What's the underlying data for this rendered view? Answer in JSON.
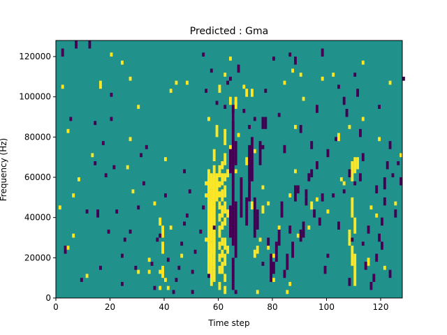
{
  "colors": {
    "background_value": "#21918c",
    "low_value": "#440154",
    "high_value": "#fde725",
    "axis": "#000000"
  },
  "chart_data": {
    "type": "heatmap",
    "title": "Predicted : Gma",
    "xlabel": "Time step",
    "ylabel": "Frequency (Hz)",
    "xlim": [
      0,
      128
    ],
    "ylim": [
      0,
      128000
    ],
    "xticks": [
      0,
      20,
      40,
      60,
      80,
      100,
      120
    ],
    "xtick_labels": [
      "0",
      "20",
      "40",
      "60",
      "80",
      "100",
      "120"
    ],
    "yticks": [
      0,
      20000,
      40000,
      60000,
      80000,
      100000,
      120000
    ],
    "ytick_labels": [
      "0",
      "20000",
      "40000",
      "60000",
      "80000",
      "100000",
      "120000"
    ],
    "n_time_steps": 128,
    "n_freq_bins": 128,
    "bin_hz": 1000,
    "value_range": [
      -1,
      1
    ],
    "background_value": 0,
    "colormap": "viridis",
    "grid": false,
    "cells_high": [
      [
        57,
        56,
        60
      ],
      [
        57,
        54,
        62
      ],
      [
        56,
        52,
        64
      ],
      [
        58,
        50,
        66
      ],
      [
        59,
        48,
        62
      ],
      [
        58,
        46,
        60
      ],
      [
        56,
        44,
        58
      ],
      [
        58,
        42,
        56
      ],
      [
        57,
        40,
        54
      ],
      [
        58,
        38,
        52
      ],
      [
        56,
        36,
        50
      ],
      [
        57,
        34,
        48
      ],
      [
        58,
        32,
        46
      ],
      [
        56,
        30,
        44
      ],
      [
        57,
        28,
        42
      ],
      [
        58,
        26,
        40
      ],
      [
        56,
        24,
        36
      ],
      [
        58,
        22,
        32
      ],
      [
        56,
        18,
        30
      ],
      [
        57,
        16,
        28
      ],
      [
        58,
        14,
        26
      ],
      [
        56,
        12,
        22
      ],
      [
        57,
        10,
        20
      ],
      [
        58,
        8,
        14
      ],
      [
        57,
        6,
        12
      ],
      [
        60,
        60,
        66
      ],
      [
        60,
        55,
        58
      ],
      [
        60,
        50,
        53
      ],
      [
        60,
        44,
        48
      ],
      [
        60,
        38,
        42
      ],
      [
        60,
        30,
        36
      ],
      [
        60,
        24,
        28
      ],
      [
        60,
        18,
        22
      ],
      [
        60,
        12,
        16
      ],
      [
        60,
        4,
        8
      ],
      [
        61,
        64,
        68
      ],
      [
        61,
        56,
        62
      ],
      [
        61,
        48,
        54
      ],
      [
        61,
        40,
        46
      ],
      [
        61,
        34,
        38
      ],
      [
        61,
        26,
        30
      ],
      [
        61,
        20,
        24
      ],
      [
        61,
        12,
        18
      ],
      [
        62,
        76,
        84
      ],
      [
        62,
        66,
        72
      ],
      [
        62,
        58,
        62
      ],
      [
        62,
        50,
        56
      ],
      [
        62,
        42,
        48
      ],
      [
        62,
        36,
        40
      ],
      [
        62,
        24,
        30
      ],
      [
        62,
        16,
        22
      ],
      [
        62,
        8,
        12
      ],
      [
        62,
        2,
        6
      ],
      [
        63,
        60,
        64
      ],
      [
        63,
        40,
        44
      ],
      [
        63,
        22,
        26
      ],
      [
        55,
        56,
        58
      ],
      [
        55,
        50,
        52
      ],
      [
        55,
        28,
        30
      ],
      [
        59,
        80,
        86
      ],
      [
        58,
        68,
        74
      ],
      [
        64,
        96,
        100
      ],
      [
        66,
        96,
        100
      ],
      [
        64,
        74,
        76
      ],
      [
        66,
        62,
        64
      ],
      [
        38,
        36,
        40
      ],
      [
        39,
        30,
        36
      ],
      [
        39,
        22,
        28
      ],
      [
        39,
        10,
        16
      ],
      [
        38,
        12,
        14
      ],
      [
        38,
        4,
        6
      ],
      [
        40,
        8,
        10
      ],
      [
        34,
        18,
        20
      ],
      [
        30,
        12,
        14
      ],
      [
        34,
        12,
        14
      ],
      [
        36,
        46,
        48
      ],
      [
        28,
        52,
        54
      ],
      [
        26,
        64,
        66
      ],
      [
        13,
        70,
        72
      ],
      [
        8,
        58,
        60
      ],
      [
        6,
        50,
        52
      ],
      [
        4,
        24,
        26
      ],
      [
        6,
        30,
        32
      ],
      [
        2,
        104,
        106
      ],
      [
        4,
        82,
        84
      ],
      [
        20,
        120,
        122
      ],
      [
        24,
        116,
        118
      ],
      [
        27,
        108,
        110
      ],
      [
        30,
        94,
        96
      ],
      [
        42,
        102,
        104
      ],
      [
        44,
        106,
        108
      ],
      [
        48,
        106,
        108
      ],
      [
        60,
        102,
        106
      ],
      [
        62,
        110,
        112
      ],
      [
        64,
        118,
        120
      ],
      [
        66,
        94,
        98
      ],
      [
        69,
        104,
        106
      ],
      [
        70,
        66,
        70
      ],
      [
        70,
        100,
        104
      ],
      [
        72,
        100,
        104
      ],
      [
        72,
        44,
        48
      ],
      [
        73,
        20,
        24
      ],
      [
        74,
        22,
        26
      ],
      [
        75,
        28,
        30
      ],
      [
        76,
        42,
        46
      ],
      [
        78,
        24,
        26
      ],
      [
        80,
        20,
        22
      ],
      [
        82,
        34,
        36
      ],
      [
        84,
        106,
        108
      ],
      [
        85,
        2,
        4
      ],
      [
        86,
        6,
        8
      ],
      [
        86,
        50,
        52
      ],
      [
        87,
        112,
        114
      ],
      [
        88,
        84,
        86
      ],
      [
        88,
        62,
        64
      ],
      [
        89,
        30,
        32
      ],
      [
        90,
        110,
        112
      ],
      [
        91,
        98,
        100
      ],
      [
        93,
        34,
        36
      ],
      [
        94,
        44,
        48
      ],
      [
        96,
        48,
        50
      ],
      [
        98,
        108,
        110
      ],
      [
        100,
        42,
        44
      ],
      [
        102,
        110,
        112
      ],
      [
        104,
        78,
        82
      ],
      [
        105,
        58,
        60
      ],
      [
        106,
        56,
        58
      ],
      [
        108,
        84,
        86
      ],
      [
        108,
        26,
        34
      ],
      [
        109,
        16,
        26
      ],
      [
        110,
        6,
        22
      ],
      [
        109,
        40,
        50
      ],
      [
        109,
        58,
        68
      ],
      [
        110,
        62,
        70
      ],
      [
        110,
        32,
        40
      ],
      [
        111,
        64,
        70
      ],
      [
        113,
        116,
        118
      ],
      [
        113,
        88,
        90
      ],
      [
        115,
        16,
        20
      ],
      [
        116,
        44,
        46
      ],
      [
        118,
        40,
        42
      ],
      [
        119,
        78,
        80
      ],
      [
        121,
        14,
        16
      ],
      [
        123,
        106,
        108
      ],
      [
        125,
        46,
        48
      ],
      [
        127,
        70,
        72
      ],
      [
        74,
        2,
        4
      ],
      [
        80,
        8,
        10
      ],
      [
        40,
        68,
        70
      ],
      [
        42,
        34,
        36
      ],
      [
        11,
        10,
        12
      ],
      [
        1,
        44,
        46
      ],
      [
        16,
        104,
        108
      ],
      [
        27,
        78,
        80
      ],
      [
        41,
        4,
        6
      ],
      [
        46,
        20,
        22
      ],
      [
        56,
        88,
        90
      ],
      [
        65,
        88,
        92
      ],
      [
        67,
        80,
        82
      ],
      [
        71,
        56,
        58
      ],
      [
        73,
        72,
        74
      ],
      [
        76,
        54,
        56
      ],
      [
        78,
        46,
        48
      ]
    ],
    "cells_low": [
      [
        65,
        26,
        96
      ],
      [
        66,
        20,
        48
      ],
      [
        64,
        30,
        46
      ],
      [
        64,
        62,
        74
      ],
      [
        66,
        66,
        78
      ],
      [
        65,
        4,
        20
      ],
      [
        68,
        40,
        60
      ],
      [
        70,
        36,
        50
      ],
      [
        71,
        48,
        76
      ],
      [
        72,
        58,
        80
      ],
      [
        73,
        30,
        50
      ],
      [
        74,
        34,
        44
      ],
      [
        75,
        66,
        78
      ],
      [
        76,
        84,
        90
      ],
      [
        77,
        84,
        90
      ],
      [
        78,
        26,
        30
      ],
      [
        79,
        8,
        22
      ],
      [
        80,
        12,
        18
      ],
      [
        81,
        18,
        28
      ],
      [
        82,
        26,
        34
      ],
      [
        83,
        40,
        48
      ],
      [
        84,
        10,
        14
      ],
      [
        85,
        14,
        22
      ],
      [
        86,
        32,
        36
      ],
      [
        87,
        20,
        28
      ],
      [
        88,
        48,
        56
      ],
      [
        89,
        52,
        56
      ],
      [
        90,
        28,
        34
      ],
      [
        91,
        30,
        38
      ],
      [
        92,
        46,
        50
      ],
      [
        93,
        58,
        62
      ],
      [
        94,
        74,
        78
      ],
      [
        95,
        40,
        44
      ],
      [
        96,
        64,
        68
      ],
      [
        97,
        36,
        40
      ],
      [
        98,
        48,
        52
      ],
      [
        99,
        12,
        16
      ],
      [
        100,
        20,
        22
      ],
      [
        102,
        50,
        52
      ],
      [
        104,
        34,
        38
      ],
      [
        106,
        52,
        54
      ],
      [
        107,
        90,
        94
      ],
      [
        108,
        6,
        10
      ],
      [
        109,
        28,
        30
      ],
      [
        110,
        110,
        112
      ],
      [
        111,
        100,
        104
      ],
      [
        112,
        80,
        84
      ],
      [
        113,
        26,
        28
      ],
      [
        114,
        14,
        18
      ],
      [
        116,
        4,
        8
      ],
      [
        117,
        8,
        12
      ],
      [
        118,
        18,
        22
      ],
      [
        119,
        28,
        32
      ],
      [
        120,
        36,
        40
      ],
      [
        121,
        46,
        50
      ],
      [
        121,
        54,
        60
      ],
      [
        122,
        64,
        68
      ],
      [
        123,
        74,
        78
      ],
      [
        124,
        60,
        62
      ],
      [
        125,
        40,
        44
      ],
      [
        126,
        66,
        68
      ],
      [
        127,
        56,
        60
      ],
      [
        128,
        108,
        110
      ],
      [
        113,
        68,
        72
      ],
      [
        118,
        52,
        56
      ],
      [
        115,
        32,
        36
      ],
      [
        120,
        24,
        28
      ],
      [
        123,
        10,
        14
      ],
      [
        112,
        58,
        62
      ],
      [
        119,
        94,
        96
      ],
      [
        2,
        120,
        124
      ],
      [
        3,
        22,
        26
      ],
      [
        5,
        88,
        90
      ],
      [
        7,
        124,
        128
      ],
      [
        9,
        8,
        10
      ],
      [
        11,
        42,
        44
      ],
      [
        12,
        124,
        128
      ],
      [
        14,
        86,
        88
      ],
      [
        14,
        66,
        68
      ],
      [
        15,
        40,
        44
      ],
      [
        16,
        14,
        16
      ],
      [
        17,
        76,
        78
      ],
      [
        18,
        60,
        62
      ],
      [
        19,
        32,
        34
      ],
      [
        20,
        88,
        90
      ],
      [
        20,
        100,
        102
      ],
      [
        21,
        64,
        66
      ],
      [
        22,
        42,
        44
      ],
      [
        24,
        6,
        8
      ],
      [
        25,
        28,
        30
      ],
      [
        27,
        32,
        34
      ],
      [
        29,
        14,
        16
      ],
      [
        31,
        70,
        72
      ],
      [
        32,
        56,
        58
      ],
      [
        33,
        74,
        76
      ],
      [
        35,
        16,
        18
      ],
      [
        36,
        4,
        6
      ],
      [
        37,
        28,
        30
      ],
      [
        38,
        30,
        32
      ],
      [
        40,
        50,
        52
      ],
      [
        41,
        18,
        20
      ],
      [
        43,
        2,
        4
      ],
      [
        44,
        8,
        10
      ],
      [
        45,
        14,
        16
      ],
      [
        46,
        26,
        28
      ],
      [
        47,
        36,
        38
      ],
      [
        47,
        62,
        64
      ],
      [
        48,
        40,
        42
      ],
      [
        49,
        52,
        54
      ],
      [
        50,
        12,
        14
      ],
      [
        51,
        22,
        24
      ],
      [
        53,
        32,
        34
      ],
      [
        54,
        44,
        46
      ],
      [
        54,
        120,
        122
      ],
      [
        55,
        102,
        104
      ],
      [
        57,
        112,
        114
      ],
      [
        59,
        96,
        98
      ],
      [
        62,
        94,
        96
      ],
      [
        63,
        106,
        108
      ],
      [
        64,
        108,
        110
      ],
      [
        67,
        112,
        116
      ],
      [
        69,
        92,
        94
      ],
      [
        71,
        84,
        86
      ],
      [
        73,
        88,
        90
      ],
      [
        76,
        74,
        76
      ],
      [
        77,
        102,
        104
      ],
      [
        80,
        118,
        120
      ],
      [
        82,
        90,
        92
      ],
      [
        84,
        72,
        76
      ],
      [
        86,
        120,
        122
      ],
      [
        88,
        116,
        120
      ],
      [
        90,
        82,
        86
      ],
      [
        92,
        50,
        54
      ],
      [
        94,
        60,
        64
      ],
      [
        96,
        92,
        96
      ],
      [
        98,
        120,
        124
      ],
      [
        100,
        70,
        74
      ],
      [
        103,
        78,
        80
      ],
      [
        104,
        104,
        106
      ],
      [
        106,
        96,
        100
      ],
      [
        108,
        60,
        64
      ],
      [
        110,
        56,
        58
      ],
      [
        24,
        20,
        22
      ],
      [
        30,
        44,
        46
      ],
      [
        56,
        10,
        12
      ],
      [
        58,
        34,
        36
      ],
      [
        50,
        2,
        4
      ],
      [
        66,
        2,
        4
      ],
      [
        76,
        16,
        18
      ]
    ]
  }
}
